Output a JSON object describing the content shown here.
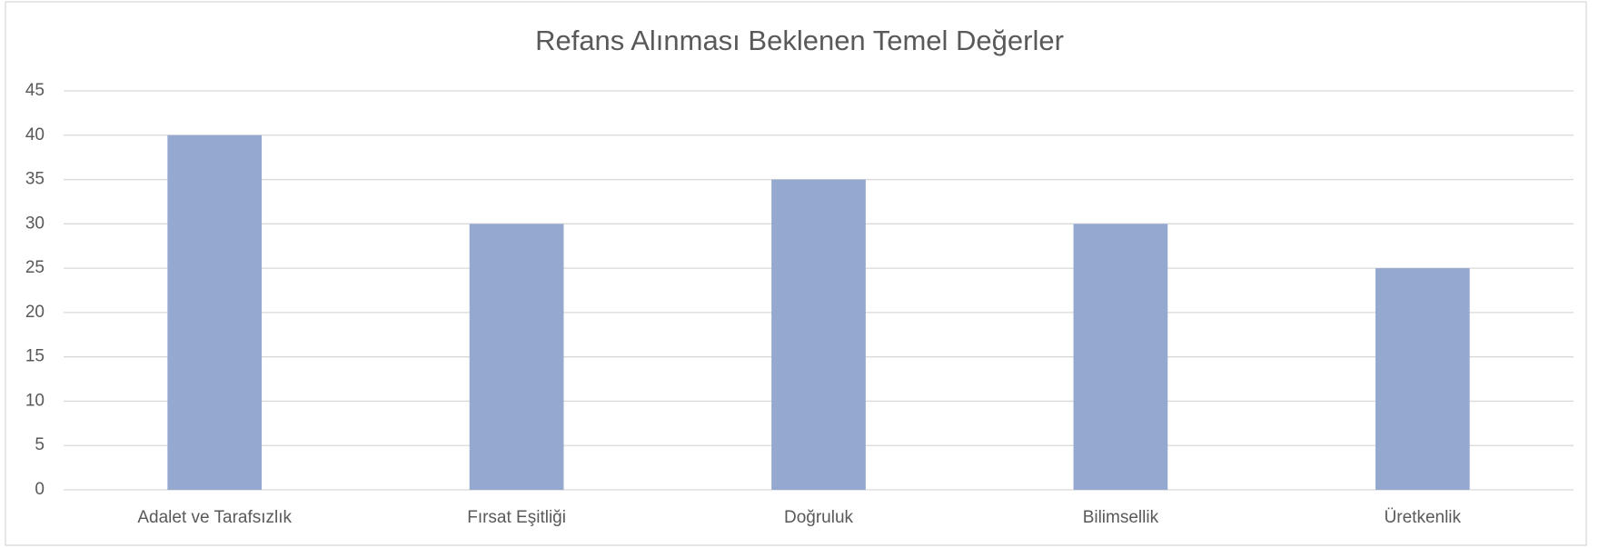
{
  "chart_data": {
    "type": "bar",
    "title": "Refans Alınması Beklenen Temel Değerler",
    "categories": [
      "Adalet ve Tarafsızlık",
      "Fırsat Eşitliği",
      "Doğruluk",
      "Bilimsellik",
      "Üretkenlik"
    ],
    "values": [
      40,
      30,
      35,
      30,
      25
    ],
    "color": "#95a9d0",
    "ylim": [
      0,
      45
    ],
    "yticks": [
      0,
      5,
      10,
      15,
      20,
      25,
      30,
      35,
      40,
      45
    ],
    "grid": true
  }
}
